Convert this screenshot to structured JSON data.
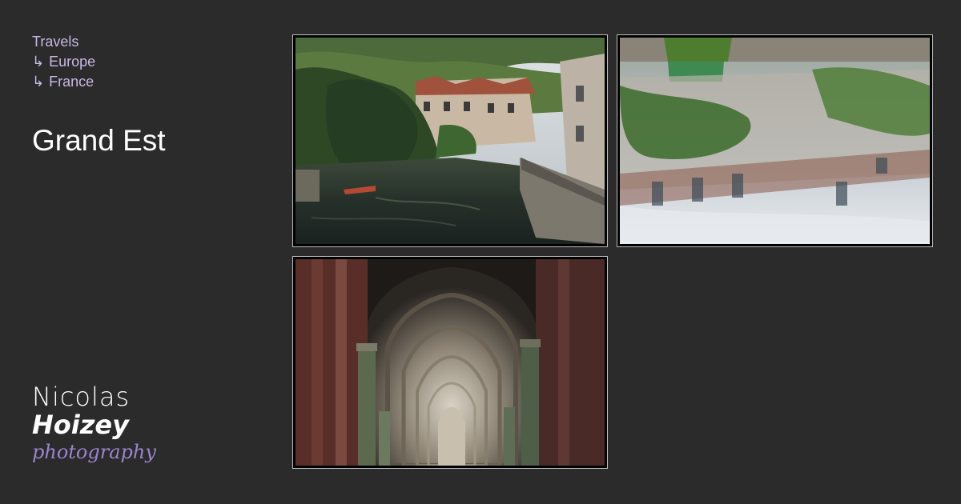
{
  "breadcrumb": {
    "items": [
      {
        "label": "Travels",
        "arrow": ""
      },
      {
        "label": "Europe",
        "arrow": "↳"
      },
      {
        "label": "France",
        "arrow": "↳"
      }
    ]
  },
  "page_title": "Grand Est",
  "logo": {
    "line1": "Nicolas",
    "line2": "Hoizey",
    "line3": "photography"
  },
  "colors": {
    "background": "#2b2b2b",
    "link": "#c7b8e6",
    "logo_accent": "#9b84cc"
  },
  "gallery": {
    "photos": [
      {
        "subject": "canal with houses along a riverside quay"
      },
      {
        "subject": "reflection of houses and trees in still water"
      },
      {
        "subject": "gothic cathedral cloister vaulted arches"
      }
    ]
  }
}
